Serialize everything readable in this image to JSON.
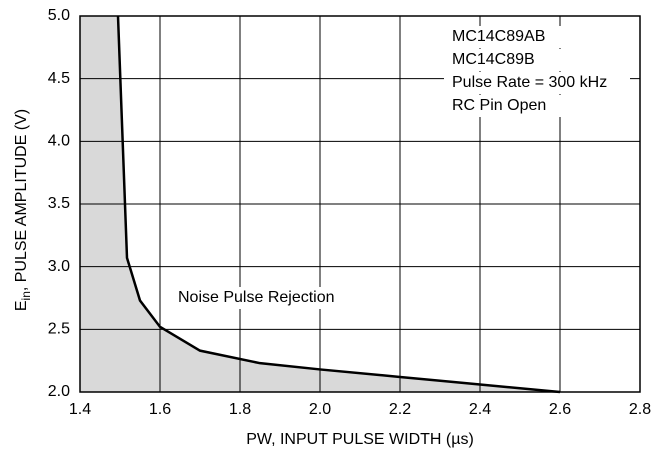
{
  "chart_data": {
    "type": "line",
    "x": [
      1.495,
      1.5175,
      1.55,
      1.6,
      1.7,
      1.85,
      2.0,
      2.2,
      2.4,
      2.6
    ],
    "values": [
      5.0,
      3.07,
      2.73,
      2.52,
      2.33,
      2.23,
      2.18,
      2.12,
      2.06,
      2.0
    ],
    "color": "#000000",
    "fill_color": "#d9d9d9",
    "xlim": [
      1.4,
      2.8
    ],
    "ylim": [
      2.0,
      5.0
    ],
    "xticks": [
      1.4,
      1.6,
      1.8,
      {
        "value": 2.0,
        "label": "2.0"
      },
      2.2,
      2.4,
      2.6,
      2.8
    ],
    "yticks": [
      {
        "value": 2.0,
        "label": "2.0"
      },
      2.5,
      {
        "value": 3.0,
        "label": "3.0"
      },
      3.5,
      {
        "value": 4.0,
        "label": "4.0"
      },
      4.5,
      {
        "value": 5.0,
        "label": "5.0"
      }
    ],
    "grid": true,
    "xlabel": "PW, INPUT PULSE WIDTH (µs)",
    "ylabel": {
      "main": "E",
      "sub": "in",
      "rest": ",  PULSE AMPLITUDE (V)"
    },
    "annotations": [
      "MC14C89AB",
      "MC14C89B",
      "Pulse Rate = 300 kHz",
      "RC Pin Open"
    ],
    "region_label": "Noise Pulse Rejection"
  }
}
